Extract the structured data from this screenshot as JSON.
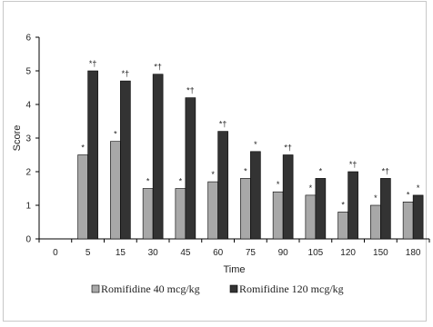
{
  "chart_data": {
    "type": "bar",
    "title": "",
    "xlabel": "Time",
    "ylabel": "Score",
    "ylim": [
      0,
      6
    ],
    "yticks": [
      "0",
      "1",
      "2",
      "3",
      "4",
      "5",
      "6"
    ],
    "categories": [
      "0",
      "5",
      "15",
      "30",
      "45",
      "60",
      "75",
      "90",
      "105",
      "120",
      "150",
      "180"
    ],
    "series": [
      {
        "name": "Romifidine 40 mcg/kg",
        "color": "#a8a8a8",
        "values": [
          0,
          2.5,
          2.9,
          1.5,
          1.5,
          1.7,
          1.8,
          1.4,
          1.3,
          0.8,
          1.0,
          1.1
        ],
        "marks": [
          "",
          "*",
          "*",
          "*",
          "*",
          "*",
          "*",
          "*",
          "*",
          "*",
          "*",
          "*"
        ]
      },
      {
        "name": "Romifidine 120 mcg/kg",
        "color": "#333333",
        "values": [
          0,
          5.0,
          4.7,
          4.9,
          4.2,
          3.2,
          2.6,
          2.5,
          1.8,
          2.0,
          1.8,
          1.3
        ],
        "marks": [
          "",
          "*†",
          "*†",
          "*†",
          "*†",
          "*†",
          "*",
          "*†",
          "*",
          "*†",
          "*†",
          "*"
        ]
      }
    ],
    "grid": false,
    "legend_position": "bottom"
  }
}
